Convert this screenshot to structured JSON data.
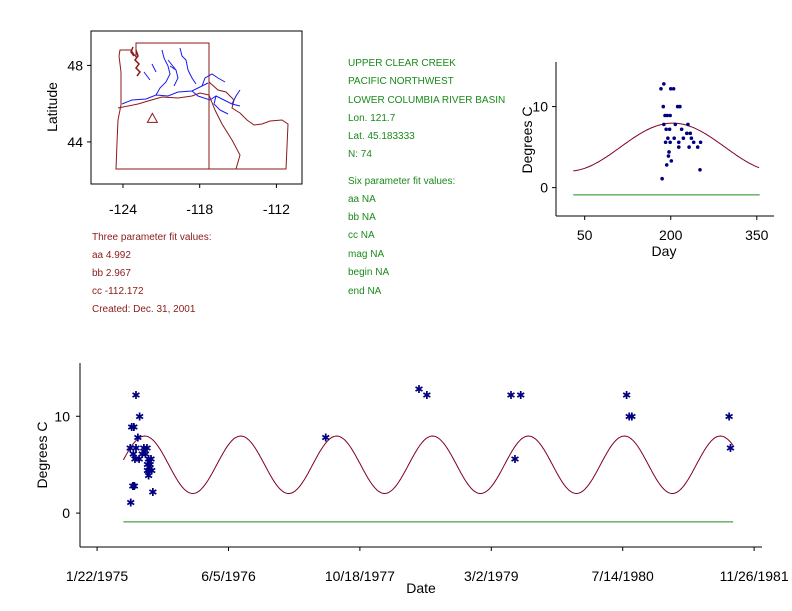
{
  "site": {
    "name": "UPPER CLEAR CREEK",
    "region": "PACIFIC NORTHWEST",
    "basin": "LOWER COLUMBIA RIVER BASIN",
    "lon": "Lon. 121.7",
    "lat": "Lat. 45.183333",
    "n": "N: 74"
  },
  "six_param": {
    "title": "Six parameter fit values:",
    "aa": "aa NA",
    "bb": "bb NA",
    "cc": "cc NA",
    "mag": "mag NA",
    "begin": "begin NA",
    "end": "end NA"
  },
  "three_param": {
    "title": "Three parameter fit values:",
    "aa": "aa 4.992",
    "bb": "bb 2.967",
    "cc": "cc -112.172",
    "created": "Created:   Dec. 31, 2001"
  },
  "colors": {
    "border": "#8b1a1a",
    "river": "#1a1aee",
    "points": "#000080",
    "fit": "#800020",
    "baseline": "#1a8a1a",
    "text_green": "#1a8a1a",
    "text_red": "#8b1a1a"
  },
  "chart_data": [
    {
      "type": "map",
      "ylabel": "Latitude",
      "xticks": [
        "-124",
        "-118",
        "-112"
      ],
      "yticks": [
        "48",
        "44"
      ],
      "x_range": [
        -126.5,
        -110
      ],
      "y_range": [
        41.8,
        49.8
      ],
      "site_marker": {
        "lon": -121.7,
        "lat": 45.18,
        "symbol": "triangle"
      }
    },
    {
      "type": "scatter",
      "title": "",
      "xlabel": "Day",
      "ylabel": "Degrees C",
      "xlim": [
        0,
        380
      ],
      "ylim": [
        -3.5,
        15.5
      ],
      "xticks": [
        50,
        200,
        350
      ],
      "yticks": [
        0,
        10
      ],
      "fit": {
        "mean": 4.992,
        "amplitude": 2.967,
        "phase_day": -112.172,
        "x_from": 30,
        "x_to": 355
      },
      "baseline": {
        "y": -0.9,
        "x_from": 30,
        "x_to": 355
      },
      "points": [
        {
          "x": 183,
          "y": 12.2
        },
        {
          "x": 188,
          "y": 12.8
        },
        {
          "x": 200,
          "y": 12.2
        },
        {
          "x": 205,
          "y": 12.2
        },
        {
          "x": 187,
          "y": 10.0
        },
        {
          "x": 212,
          "y": 10.0
        },
        {
          "x": 216,
          "y": 10.0
        },
        {
          "x": 190,
          "y": 8.9
        },
        {
          "x": 194,
          "y": 8.9
        },
        {
          "x": 199,
          "y": 8.9
        },
        {
          "x": 188,
          "y": 7.8
        },
        {
          "x": 208,
          "y": 7.8
        },
        {
          "x": 230,
          "y": 7.8
        },
        {
          "x": 192,
          "y": 7.2
        },
        {
          "x": 198,
          "y": 7.2
        },
        {
          "x": 219,
          "y": 7.2
        },
        {
          "x": 228,
          "y": 6.7
        },
        {
          "x": 234,
          "y": 6.7
        },
        {
          "x": 195,
          "y": 6.1
        },
        {
          "x": 206,
          "y": 6.1
        },
        {
          "x": 222,
          "y": 6.1
        },
        {
          "x": 236,
          "y": 6.1
        },
        {
          "x": 191,
          "y": 5.6
        },
        {
          "x": 199,
          "y": 5.6
        },
        {
          "x": 214,
          "y": 5.6
        },
        {
          "x": 240,
          "y": 5.6
        },
        {
          "x": 252,
          "y": 5.6
        },
        {
          "x": 214,
          "y": 5.0
        },
        {
          "x": 232,
          "y": 5.0
        },
        {
          "x": 247,
          "y": 5.0
        },
        {
          "x": 197,
          "y": 4.4
        },
        {
          "x": 196,
          "y": 3.9
        },
        {
          "x": 201,
          "y": 3.3
        },
        {
          "x": 193,
          "y": 2.8
        },
        {
          "x": 251,
          "y": 2.2
        },
        {
          "x": 185,
          "y": 1.1
        }
      ]
    },
    {
      "type": "scatter",
      "title": "",
      "xlabel": "Date",
      "ylabel": "Degrees C",
      "ylim": [
        -3.5,
        15.5
      ],
      "x_tick_labels": [
        "1/22/1975",
        "6/5/1976",
        "10/18/1977",
        "3/2/1979",
        "7/14/1980",
        "11/26/1981"
      ],
      "yticks": [
        0,
        10
      ],
      "x_range_days_from_1975_01_22": [
        -65,
        2530
      ],
      "fit": {
        "mean": 4.992,
        "amplitude": 2.967,
        "phase_day": -112.172,
        "x_from": 100,
        "x_to": 2420
      },
      "baseline": {
        "y": -0.9,
        "x_from": 100,
        "x_to": 2420
      },
      "points": [
        {
          "x": 148,
          "y": 12.2
        },
        {
          "x": 162,
          "y": 10.0
        },
        {
          "x": 132,
          "y": 8.9
        },
        {
          "x": 140,
          "y": 8.9
        },
        {
          "x": 155,
          "y": 7.8
        },
        {
          "x": 126,
          "y": 6.7
        },
        {
          "x": 148,
          "y": 6.7
        },
        {
          "x": 178,
          "y": 6.7
        },
        {
          "x": 190,
          "y": 6.7
        },
        {
          "x": 184,
          "y": 6.1
        },
        {
          "x": 138,
          "y": 6.1
        },
        {
          "x": 172,
          "y": 6.1
        },
        {
          "x": 160,
          "y": 5.6
        },
        {
          "x": 196,
          "y": 5.6
        },
        {
          "x": 205,
          "y": 5.6
        },
        {
          "x": 144,
          "y": 5.6
        },
        {
          "x": 192,
          "y": 5.0
        },
        {
          "x": 202,
          "y": 5.0
        },
        {
          "x": 192,
          "y": 4.4
        },
        {
          "x": 198,
          "y": 4.4
        },
        {
          "x": 208,
          "y": 4.4
        },
        {
          "x": 196,
          "y": 3.9
        },
        {
          "x": 136,
          "y": 2.8
        },
        {
          "x": 142,
          "y": 2.8
        },
        {
          "x": 212,
          "y": 2.2
        },
        {
          "x": 128,
          "y": 1.1
        },
        {
          "x": 870,
          "y": 7.8
        },
        {
          "x": 1225,
          "y": 12.8
        },
        {
          "x": 1255,
          "y": 12.2
        },
        {
          "x": 1575,
          "y": 12.2
        },
        {
          "x": 1612,
          "y": 12.2
        },
        {
          "x": 1590,
          "y": 5.6
        },
        {
          "x": 2015,
          "y": 12.2
        },
        {
          "x": 2025,
          "y": 10.0
        },
        {
          "x": 2035,
          "y": 10.0
        },
        {
          "x": 2405,
          "y": 10.0
        },
        {
          "x": 2410,
          "y": 6.7
        }
      ]
    }
  ]
}
